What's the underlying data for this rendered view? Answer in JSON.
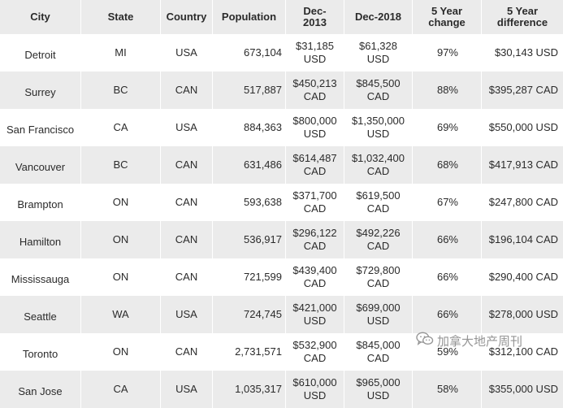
{
  "table": {
    "headers": [
      "City",
      "State",
      "Country",
      "Population",
      "Dec-\n2013",
      "Dec-2018",
      "5 Year\nchange",
      "5 Year\ndifference"
    ],
    "rows": [
      [
        "Detroit",
        "MI",
        "USA",
        "673,104",
        "$31,185\nUSD",
        "$61,328\nUSD",
        "97%",
        "$30,143 USD"
      ],
      [
        "Surrey",
        "BC",
        "CAN",
        "517,887",
        "$450,213\nCAD",
        "$845,500\nCAD",
        "88%",
        "$395,287 CAD"
      ],
      [
        "San Francisco",
        "CA",
        "USA",
        "884,363",
        "$800,000\nUSD",
        "$1,350,000\nUSD",
        "69%",
        "$550,000 USD"
      ],
      [
        "Vancouver",
        "BC",
        "CAN",
        "631,486",
        "$614,487\nCAD",
        "$1,032,400\nCAD",
        "68%",
        "$417,913 CAD"
      ],
      [
        "Brampton",
        "ON",
        "CAN",
        "593,638",
        "$371,700\nCAD",
        "$619,500\nCAD",
        "67%",
        "$247,800 CAD"
      ],
      [
        "Hamilton",
        "ON",
        "CAN",
        "536,917",
        "$296,122\nCAD",
        "$492,226\nCAD",
        "66%",
        "$196,104 CAD"
      ],
      [
        "Mississauga",
        "ON",
        "CAN",
        "721,599",
        "$439,400\nCAD",
        "$729,800\nCAD",
        "66%",
        "$290,400 CAD"
      ],
      [
        "Seattle",
        "WA",
        "USA",
        "724,745",
        "$421,000\nUSD",
        "$699,000\nUSD",
        "66%",
        "$278,000 USD"
      ],
      [
        "Toronto",
        "ON",
        "CAN",
        "2,731,571",
        "$532,900\nCAD",
        "$845,000\nCAD",
        "59%",
        "$312,100 CAD"
      ],
      [
        "San Jose",
        "CA",
        "USA",
        "1,035,317",
        "$610,000\nUSD",
        "$965,000\nUSD",
        "58%",
        "$355,000 USD"
      ]
    ]
  },
  "watermark": {
    "text": "加拿大地产周刊",
    "icon": "wechat-icon"
  }
}
